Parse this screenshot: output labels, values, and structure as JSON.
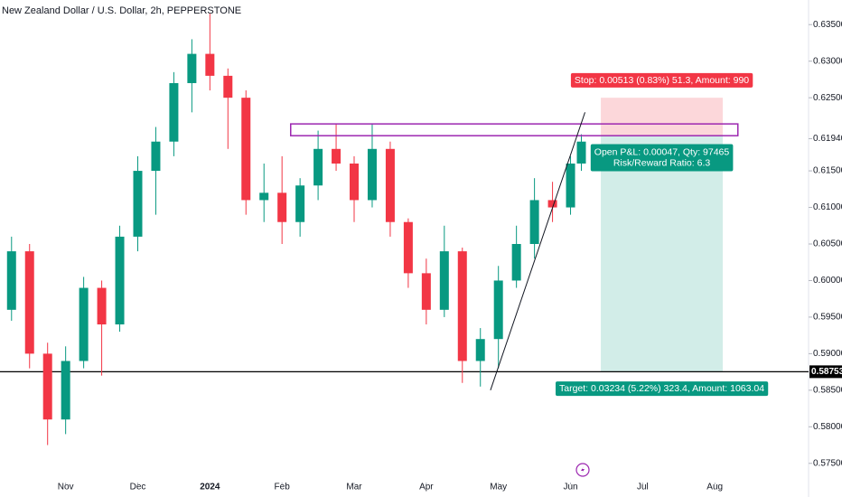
{
  "chart_data": {
    "type": "candlestick",
    "title": "New Zealand Dollar / U.S. Dollar, 2h, PEPPERSTONE",
    "x": [
      0.25,
      0.5,
      0.75,
      1.0,
      1.25,
      1.5,
      1.75,
      2.0,
      2.25,
      2.5,
      2.75,
      3.0,
      3.25,
      3.5,
      3.75,
      4.0,
      4.25,
      4.5,
      4.75,
      5.0,
      5.25,
      5.5,
      5.75,
      6.0,
      6.25,
      6.5,
      6.75,
      7.0,
      7.25,
      7.5,
      7.75,
      8.0,
      8.15
    ],
    "open": [
      0.596,
      0.604,
      0.59,
      0.581,
      0.589,
      0.599,
      0.594,
      0.606,
      0.615,
      0.619,
      0.627,
      0.631,
      0.628,
      0.625,
      0.611,
      0.612,
      0.608,
      0.613,
      0.618,
      0.616,
      0.611,
      0.618,
      0.608,
      0.601,
      0.596,
      0.604,
      0.589,
      0.592,
      0.6,
      0.605,
      0.611,
      0.61,
      0.616
    ],
    "high": [
      0.606,
      0.605,
      0.5915,
      0.591,
      0.6005,
      0.6,
      0.6075,
      0.617,
      0.621,
      0.6285,
      0.633,
      0.6365,
      0.629,
      0.626,
      0.616,
      0.617,
      0.614,
      0.6205,
      0.6215,
      0.617,
      0.6215,
      0.619,
      0.6085,
      0.603,
      0.6075,
      0.6045,
      0.5935,
      0.602,
      0.6075,
      0.614,
      0.6135,
      0.617,
      0.62
    ],
    "low": [
      0.5945,
      0.588,
      0.5775,
      0.579,
      0.588,
      0.587,
      0.593,
      0.604,
      0.609,
      0.617,
      0.623,
      0.626,
      0.618,
      0.609,
      0.608,
      0.605,
      0.606,
      0.611,
      0.615,
      0.608,
      0.61,
      0.606,
      0.599,
      0.594,
      0.595,
      0.586,
      0.5855,
      0.588,
      0.599,
      0.603,
      0.608,
      0.609,
      0.615
    ],
    "close": [
      0.604,
      0.59,
      0.581,
      0.589,
      0.599,
      0.594,
      0.606,
      0.615,
      0.619,
      0.627,
      0.631,
      0.628,
      0.625,
      0.611,
      0.612,
      0.608,
      0.613,
      0.618,
      0.616,
      0.611,
      0.618,
      0.608,
      0.601,
      0.596,
      0.604,
      0.589,
      0.592,
      0.6,
      0.605,
      0.611,
      0.61,
      0.616,
      0.619
    ],
    "up_color": "#089981",
    "down_color": "#f23645",
    "xlim": [
      0.09,
      11.3
    ],
    "xticks": [
      {
        "value": 1,
        "label": "Nov"
      },
      {
        "value": 2,
        "label": "Dec"
      },
      {
        "value": 3,
        "label": "2024"
      },
      {
        "value": 4,
        "label": "Feb"
      },
      {
        "value": 5,
        "label": "Mar"
      },
      {
        "value": 6,
        "label": "Apr"
      },
      {
        "value": 7,
        "label": "May"
      },
      {
        "value": 8,
        "label": "Jun"
      },
      {
        "value": 9,
        "label": "Jul"
      },
      {
        "value": 10,
        "label": "Aug"
      }
    ],
    "ylim": [
      0.5725,
      0.6375
    ],
    "yticks": [
      {
        "value": 0.635,
        "label": "0.63500"
      },
      {
        "value": 0.63,
        "label": "0.63000"
      },
      {
        "value": 0.625,
        "label": "0.62500"
      },
      {
        "value": 0.6194,
        "label": "0.61940"
      },
      {
        "value": 0.615,
        "label": "0.61500"
      },
      {
        "value": 0.61,
        "label": "0.61000"
      },
      {
        "value": 0.605,
        "label": "0.60500"
      },
      {
        "value": 0.6,
        "label": "0.60000"
      },
      {
        "value": 0.595,
        "label": "0.59500"
      },
      {
        "value": 0.59,
        "label": "0.59000"
      },
      {
        "value": 0.585,
        "label": "0.58500"
      },
      {
        "value": 0.58,
        "label": "0.58000"
      },
      {
        "value": 0.575,
        "label": "0.57500"
      }
    ],
    "hline": {
      "value": 0.58753,
      "color": "#000000"
    },
    "zone": {
      "x": [
        4.12,
        10.32
      ],
      "y": [
        0.61981,
        0.62142
      ],
      "color": "#9c27b0"
    },
    "trendline": {
      "x": [
        6.89,
        8.2
      ],
      "y": [
        0.585,
        0.623
      ]
    },
    "position": {
      "x": [
        8.42,
        10.11
      ],
      "entry": 0.61987,
      "stop": 0.625,
      "target": 0.58753,
      "stop_label": "Stop: 0.00513 (0.83%) 51.3, Amount: 990",
      "pnl_label": "Open P&L: 0.00047, Qty: 97465",
      "ratio_label": "Risk/Reward Ratio: 6.3",
      "target_label": "Target: 0.03234 (5.22%) 323.4, Amount: 1063.04"
    }
  }
}
